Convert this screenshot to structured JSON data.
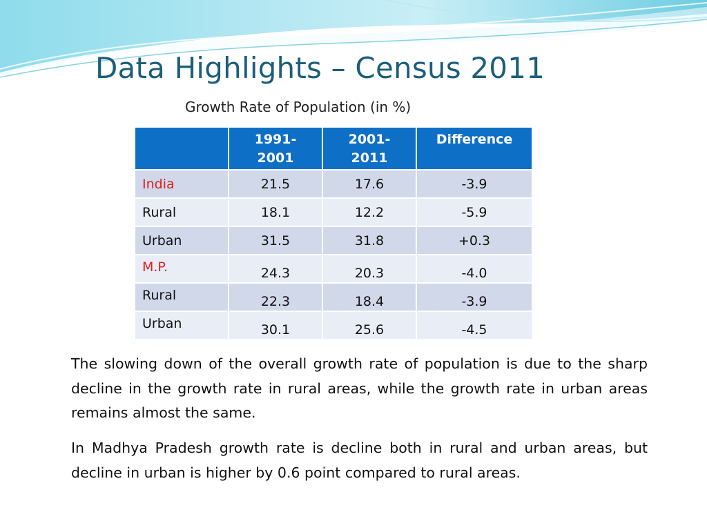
{
  "slide": {
    "title": "Data Highlights – Census 2011",
    "subtitle": "Growth Rate of Population (in %)"
  },
  "table": {
    "headers": [
      "",
      "1991-\n2001",
      "2001-\n2011",
      "Difference"
    ],
    "rows": [
      {
        "label": "India",
        "v1": "21.5",
        "v2": "17.6",
        "diff": "-3.9"
      },
      {
        "label": "Rural",
        "v1": "18.1",
        "v2": "12.2",
        "diff": "-5.9"
      },
      {
        "label": "Urban",
        "v1": "31.5",
        "v2": "31.8",
        "diff": "+0.3"
      },
      {
        "label": "M.P.",
        "v1": "24.3",
        "v2": "20.3",
        "diff": "-4.0"
      },
      {
        "label": "Rural",
        "v1": "22.3",
        "v2": "18.4",
        "diff": "-3.9"
      },
      {
        "label": "Urban",
        "v1": "30.1",
        "v2": "25.6",
        "diff": "-4.5"
      }
    ]
  },
  "paragraphs": [
    "The slowing down of the overall growth rate of population is due to the sharp decline in the growth rate in rural areas, while the growth rate in urban areas remains almost the same.",
    "In Madhya Pradesh growth rate is decline both in rural and urban areas, but decline in urban is higher by 0.6 point compared to rural areas."
  ],
  "colors": {
    "title": "#1b5e7a",
    "header_bg": "#0e6fc7",
    "row_dark": "#d0d8ea",
    "row_light": "#e9edf5",
    "region_label": "#e31b1b",
    "wave": "#7fd3e6"
  }
}
